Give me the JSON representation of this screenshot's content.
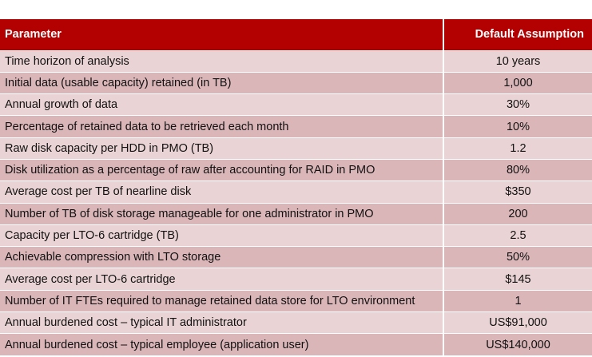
{
  "table": {
    "headers": {
      "parameter": "Parameter",
      "value": "Default Assumption"
    },
    "rows": [
      {
        "parameter": "Time horizon of analysis",
        "value": "10 years"
      },
      {
        "parameter": "Initial data (usable capacity) retained (in TB)",
        "value": "1,000"
      },
      {
        "parameter": "Annual growth of data",
        "value": "30%"
      },
      {
        "parameter": "Percentage of retained data to be retrieved each month",
        "value": "10%"
      },
      {
        "parameter": "Raw disk capacity per HDD in PMO (TB)",
        "value": "1.2"
      },
      {
        "parameter": "Disk utilization as a percentage of raw after accounting for RAID in PMO",
        "value": "80%"
      },
      {
        "parameter": "Average cost per TB of nearline disk",
        "value": "$350"
      },
      {
        "parameter": "Number of TB of disk storage manageable for one administrator in PMO",
        "value": "200"
      },
      {
        "parameter": "Capacity per LTO-6 cartridge (TB)",
        "value": "2.5"
      },
      {
        "parameter": "Achievable compression with LTO storage",
        "value": "50%"
      },
      {
        "parameter": "Average cost per LTO-6 cartridge",
        "value": "$145"
      },
      {
        "parameter": "Number of IT FTEs required to manage retained data store for LTO environment",
        "value": "1"
      },
      {
        "parameter": "Annual burdened cost – typical IT administrator",
        "value": "US$91,000"
      },
      {
        "parameter": "Annual burdened cost – typical employee (application user)",
        "value": "US$140,000"
      }
    ]
  },
  "colors": {
    "header_bg": "#b30000",
    "row_light": "#ead3d4",
    "row_dark": "#dbb6b8"
  }
}
